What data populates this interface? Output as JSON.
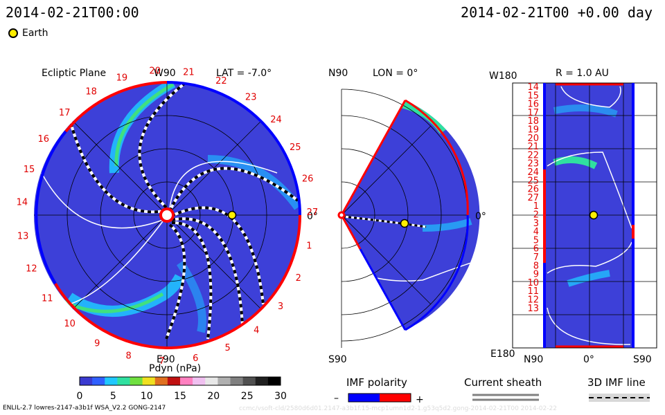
{
  "header": {
    "left_title": "2014-02-21T00:00",
    "right_title": "2014-02-21T00 +0.00 day",
    "earth_label": "Earth"
  },
  "ecliptic": {
    "title": "Ecliptic Plane",
    "top_axis": "W90",
    "bottom_axis": "E90",
    "right_axis": "0°",
    "lat_label": "LAT = -7.0°",
    "numbers": [
      "1",
      "2",
      "3",
      "4",
      "5",
      "6",
      "7",
      "8",
      "9",
      "10",
      "11",
      "12",
      "13",
      "14",
      "15",
      "16",
      "17",
      "18",
      "19",
      "20",
      "21",
      "22",
      "23",
      "24",
      "25",
      "26",
      "27"
    ]
  },
  "meridional": {
    "top_axis": "N90",
    "bottom_axis": "S90",
    "right_axis": "0°",
    "lon_label": "LON = 0°"
  },
  "radial": {
    "title": "R = 1.0 AU",
    "top_left": "W180",
    "bottom_left": "E180",
    "bottom_labels": [
      "N90",
      "0°",
      "S90"
    ],
    "rows": [
      "14",
      "15",
      "16",
      "17",
      "18",
      "19",
      "20",
      "21",
      "22",
      "23",
      "24",
      "25",
      "26",
      "27",
      "1",
      "2",
      "3",
      "4",
      "5",
      "6",
      "7",
      "8",
      "9",
      "10",
      "11",
      "12",
      "13"
    ]
  },
  "colorbar": {
    "title": "Pdyn (nPa)",
    "ticks": [
      "0",
      "5",
      "10",
      "15",
      "20",
      "25",
      "30"
    ],
    "stops": [
      "#3a3ad0",
      "#3060ff",
      "#20c8ff",
      "#30e0a0",
      "#70e040",
      "#f0e020",
      "#e07020",
      "#c01010",
      "#ff80c0",
      "#f0c0f0",
      "#e8e8e8",
      "#b0b0b0",
      "#808080",
      "#505050",
      "#202020",
      "#000000"
    ]
  },
  "legends": {
    "imf_title": "IMF polarity",
    "imf_minus": "–",
    "imf_plus": "+",
    "sheath_title": "Current sheath",
    "imf3d_title": "3D IMF line",
    "neg_color": "#0000ff",
    "pos_color": "#ff0000"
  },
  "footer": {
    "left": "ENLIL-2.7 lowres-2147-a3b1f WSA_V2.2 GONG-2147",
    "right": "ccmc/vsoft-cld/2580d6d01.2147-a3b1f.15-mcp1umn1d2-1.g53q5d2.gong-2014-02-21T00   2014-02-22"
  }
}
